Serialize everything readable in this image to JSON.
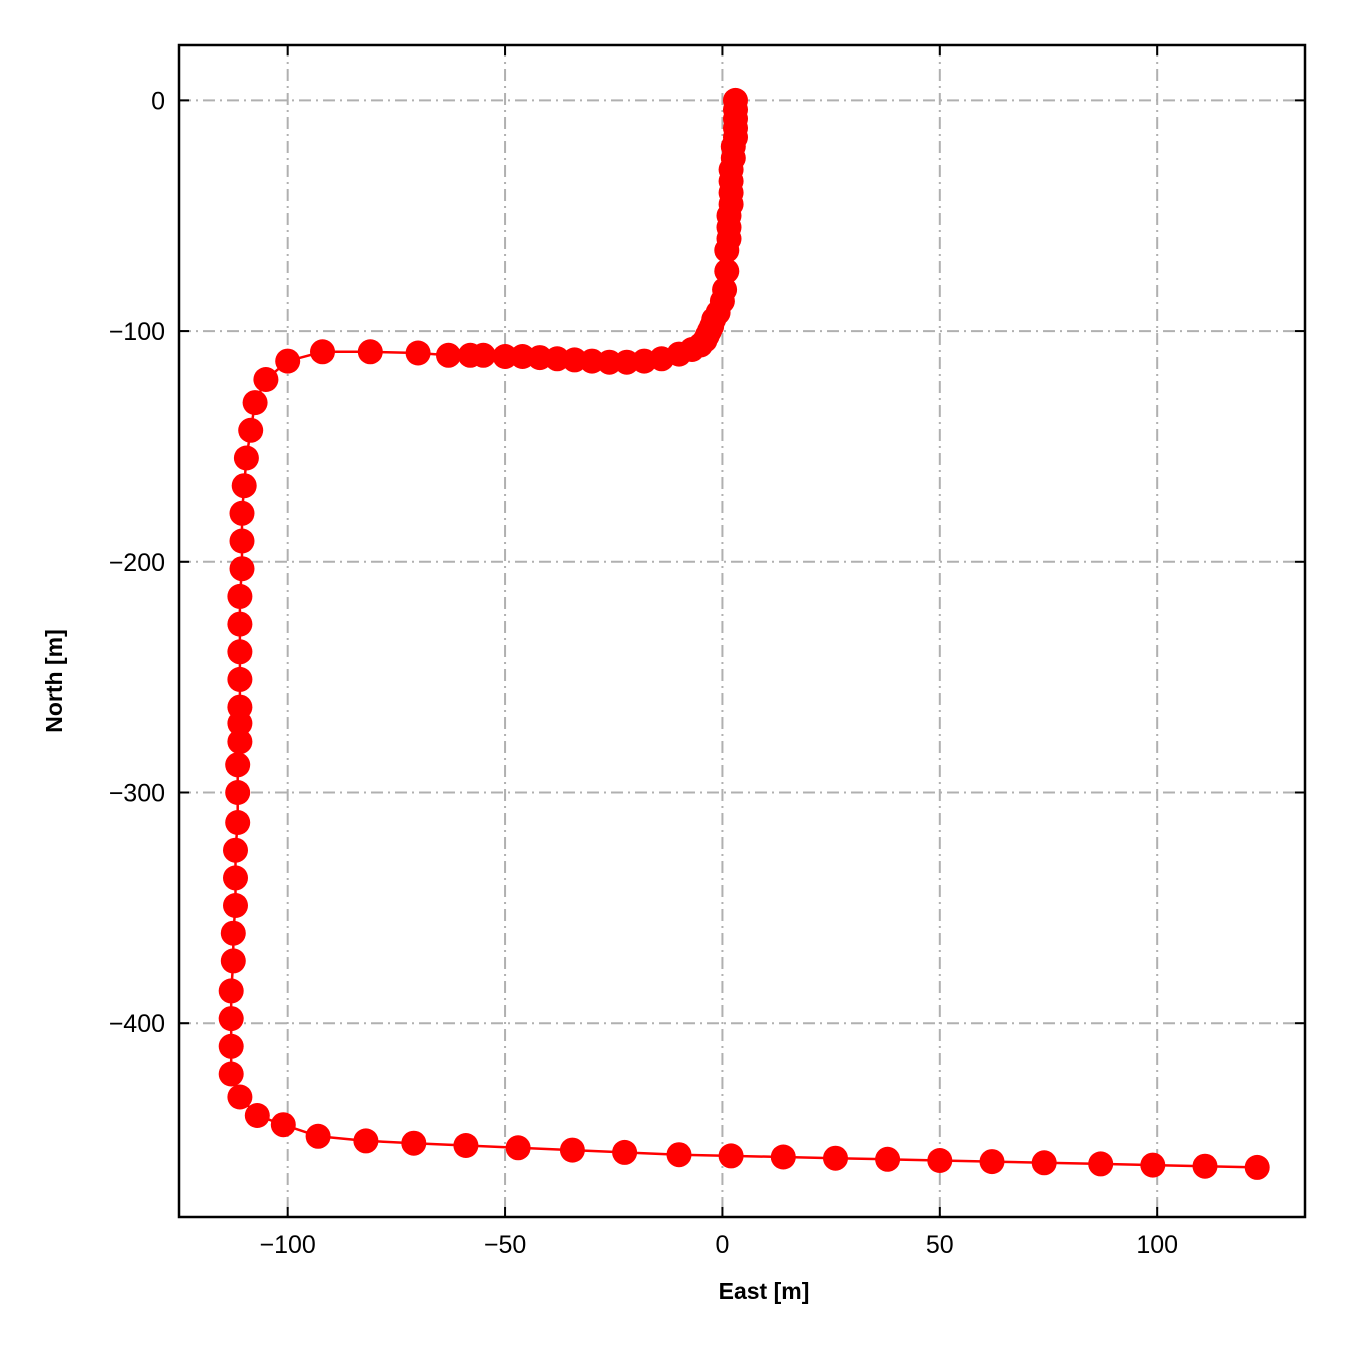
{
  "chart_data": {
    "type": "line",
    "title": "",
    "xlabel": "East [m]",
    "ylabel": "North [m]",
    "xlim": [
      -125,
      134
    ],
    "ylim": [
      -484,
      24
    ],
    "xticks": [
      -100,
      -50,
      0,
      50,
      100
    ],
    "xtick_labels": [
      "−100",
      "−50",
      "0",
      "50",
      "100"
    ],
    "yticks": [
      0,
      -100,
      -200,
      -300,
      -400
    ],
    "ytick_labels": [
      "0",
      "−100",
      "−200",
      "−300",
      "−400"
    ],
    "grid": true,
    "legend": "none",
    "colors": {
      "series": "#ff0000",
      "grid": "#b0b0b0",
      "frame": "#000000"
    },
    "series": [
      {
        "marker": "circle",
        "x": [
          3,
          3,
          3,
          3,
          3,
          2.5,
          2.5,
          2,
          2,
          2,
          2,
          1.5,
          1.5,
          1.5,
          1,
          1,
          0.5,
          0,
          -1,
          -2,
          -2.5,
          -3,
          -3.5,
          -4,
          -5,
          -7,
          -10,
          -14,
          -18,
          -22,
          -26,
          -30,
          -34,
          -38,
          -42,
          -46,
          -50,
          -55,
          -58,
          -63,
          -70,
          -81,
          -92,
          -100,
          -105,
          -107.5,
          -108.5,
          -109.5,
          -110,
          -110.5,
          -110.5,
          -110.5,
          -111,
          -111,
          -111,
          -111,
          -111,
          -111,
          -111,
          -111.5,
          -111.5,
          -111.5,
          -112,
          -112,
          -112,
          -112.5,
          -112.5,
          -113,
          -113,
          -113,
          -113,
          -111,
          -107,
          -101,
          -93,
          -82,
          -71,
          -59,
          -47,
          -34.5,
          -22.5,
          -10,
          2,
          14,
          26,
          38,
          50,
          62,
          74,
          87,
          99,
          111,
          123
        ],
        "y": [
          0,
          -4,
          -8,
          -12,
          -16,
          -20,
          -25,
          -30,
          -35,
          -40,
          -45,
          -50,
          -55,
          -60,
          -65,
          -74,
          -82,
          -87,
          -92,
          -95,
          -98,
          -100,
          -102,
          -104,
          -106,
          -108,
          -110,
          -112,
          -113,
          -113.5,
          -113.5,
          -113,
          -112.5,
          -112,
          -111.5,
          -111,
          -111,
          -110.5,
          -110.5,
          -110.5,
          -109.5,
          -109,
          -109,
          -113,
          -121,
          -131,
          -143,
          -155,
          -167,
          -179,
          -191,
          -203,
          -215,
          -227,
          -239,
          -251,
          -263,
          -270,
          -278,
          -288,
          -300,
          -313,
          -325,
          -337,
          -349,
          -361,
          -373,
          -386,
          -398,
          -410,
          -422,
          -432,
          -440,
          -444,
          -449,
          -451,
          -452,
          -453,
          -454,
          -455,
          -456,
          -457,
          -457.5,
          -458,
          -458.5,
          -459,
          -459.5,
          -460,
          -460.5,
          -461,
          -461.5,
          -462,
          -462.5
        ]
      }
    ]
  }
}
